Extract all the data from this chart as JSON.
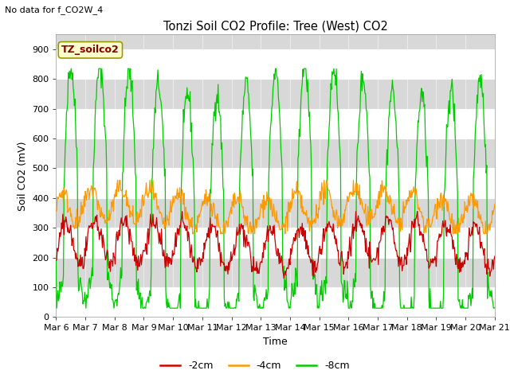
{
  "title": "Tonzi Soil CO2 Profile: Tree (West) CO2",
  "no_data_label": "No data for f_CO2W_4",
  "legend_box_label": "TZ_soilco2",
  "xlabel": "Time",
  "ylabel": "Soil CO2 (mV)",
  "ylim": [
    0,
    950
  ],
  "xlim": [
    0,
    360
  ],
  "xtick_labels": [
    "Mar 6",
    "Mar 7",
    "Mar 8",
    "Mar 9",
    "Mar 10",
    "Mar 11",
    "Mar 12",
    "Mar 13",
    "Mar 14",
    "Mar 15",
    "Mar 16",
    "Mar 17",
    "Mar 18",
    "Mar 19",
    "Mar 20",
    "Mar 21"
  ],
  "xtick_positions": [
    0,
    24,
    48,
    72,
    96,
    120,
    144,
    168,
    192,
    216,
    240,
    264,
    288,
    312,
    336,
    360
  ],
  "color_2cm": "#cc0000",
  "color_4cm": "#ff9900",
  "color_8cm": "#00cc00",
  "label_2cm": "-2cm",
  "label_4cm": "-4cm",
  "label_8cm": "-8cm",
  "bg_color": "#ffffff",
  "plot_bg": "#ffffff",
  "band_color": "#d8d8d8",
  "legend_box_bg": "#ffffcc",
  "legend_box_edge": "#999900",
  "yticks": [
    0,
    100,
    200,
    300,
    400,
    500,
    600,
    700,
    800,
    900
  ]
}
